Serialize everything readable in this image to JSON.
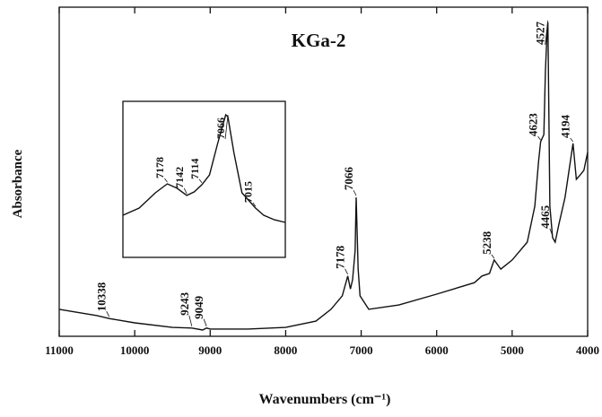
{
  "chart_data": [
    {
      "type": "line",
      "title": "KGa-2",
      "x_label": "Wavenumbers (cm⁻¹)",
      "y_label": "Absorbance",
      "xlim": [
        11000,
        4000
      ],
      "xticks": [
        11000,
        10000,
        9000,
        8000,
        7000,
        6000,
        5000,
        4000
      ],
      "ylim": [
        0,
        100
      ],
      "color": "#111111",
      "x": [
        11000,
        10500,
        10338,
        10000,
        9500,
        9243,
        9100,
        9049,
        9000,
        8500,
        8000,
        7600,
        7400,
        7250,
        7178,
        7142,
        7114,
        7080,
        7066,
        7040,
        7015,
        6900,
        6500,
        6000,
        5500,
        5400,
        5300,
        5238,
        5150,
        5000,
        4800,
        4700,
        4650,
        4623,
        4580,
        4560,
        4540,
        4527,
        4515,
        4500,
        4465,
        4430,
        4380,
        4300,
        4194,
        4150,
        4100,
        4050,
        4000
      ],
      "values": [
        8.2,
        6.3,
        5.4,
        4.1,
        2.7,
        2.5,
        1.9,
        2.5,
        2.2,
        2.2,
        2.7,
        4.6,
        8.2,
        12.3,
        18.3,
        14.4,
        17.2,
        25.9,
        42.2,
        20.4,
        12.3,
        8.2,
        9.5,
        12.8,
        16.3,
        18.3,
        19.1,
        23.2,
        20.4,
        23.2,
        28.6,
        39.5,
        53.1,
        59.1,
        61.3,
        80.4,
        91.3,
        95.4,
        69.5,
        39.5,
        30.0,
        28.6,
        34.1,
        42.2,
        58.6,
        47.7,
        49.0,
        50.4,
        55.9
      ],
      "annotations": [
        {
          "x": 10338
        },
        {
          "x": 9243
        },
        {
          "x": 9049
        },
        {
          "x": 7178
        },
        {
          "x": 7066
        },
        {
          "x": 5238
        },
        {
          "x": 4623
        },
        {
          "x": 4527
        },
        {
          "x": 4465
        },
        {
          "x": 4194
        }
      ]
    },
    {
      "type": "line",
      "xlim": [
        7260,
        6960
      ],
      "ylim": [
        0,
        100
      ],
      "color": "#111111",
      "x": [
        7260,
        7230,
        7200,
        7178,
        7160,
        7142,
        7128,
        7114,
        7100,
        7085,
        7070,
        7066,
        7055,
        7040,
        7015,
        7000,
        6980,
        6960
      ],
      "values": [
        27.0,
        31.6,
        41.4,
        47.1,
        44.3,
        39.7,
        42.0,
        46.6,
        52.9,
        73.0,
        91.4,
        90.2,
        67.2,
        41.4,
        31.6,
        27.0,
        24.1,
        22.4
      ],
      "annotations": [
        {
          "x": 7178
        },
        {
          "x": 7142
        },
        {
          "x": 7114
        },
        {
          "x": 7066
        },
        {
          "x": 7015
        }
      ]
    }
  ]
}
